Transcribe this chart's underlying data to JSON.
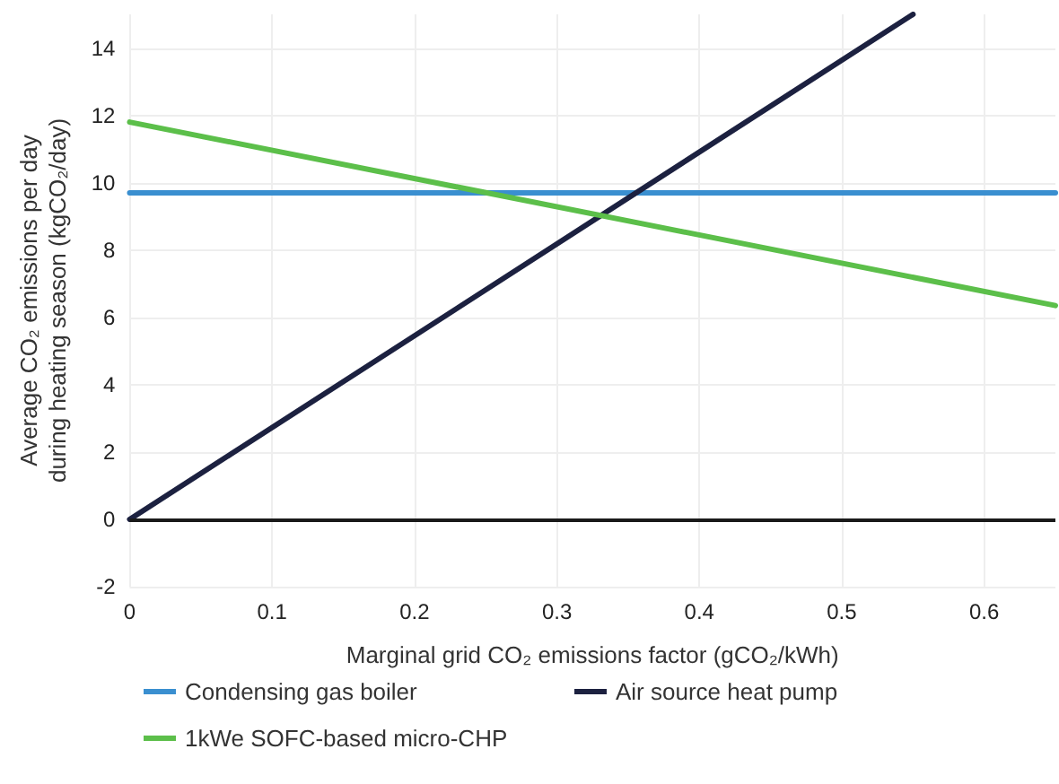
{
  "chart_data": {
    "type": "line",
    "xlabel": "Marginal grid CO₂ emissions factor (gCO₂/kWh)",
    "ylabel": "Average CO₂ emissions per day\nduring heating season (kgCO₂/day)",
    "series": [
      {
        "name": "Condensing gas boiler",
        "color": "#3a8fd0",
        "x": [
          0,
          0.65
        ],
        "values": [
          9.7,
          9.7
        ]
      },
      {
        "name": "Air source heat pump",
        "color": "#1c2140",
        "x": [
          0,
          0.55
        ],
        "values": [
          0,
          15
        ]
      },
      {
        "name": "1kWe SOFC-based micro-CHP",
        "color": "#5cbf4a",
        "x": [
          0,
          0.65
        ],
        "values": [
          11.8,
          6.35
        ]
      }
    ],
    "xlim": [
      0,
      0.65
    ],
    "xticks": [
      0,
      0.1,
      0.2,
      0.3,
      0.4,
      0.5,
      0.6
    ],
    "ylim": [
      -2,
      15
    ],
    "yticks": [
      -2,
      0,
      2,
      4,
      6,
      8,
      10,
      12,
      14
    ],
    "ref_lines": [
      {
        "axis": "y",
        "value": 0,
        "color": "#1a1a1a"
      }
    ],
    "grid": true,
    "legend": "bottom",
    "marker": "none",
    "line_style": "solid"
  }
}
